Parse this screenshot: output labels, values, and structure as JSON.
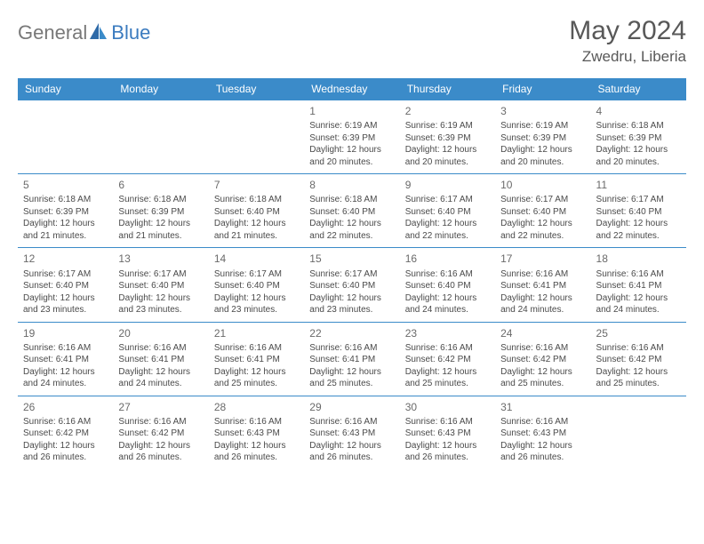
{
  "brand": {
    "part1": "General",
    "part2": "Blue"
  },
  "title": "May 2024",
  "location": "Zwedru, Liberia",
  "weekdays": [
    "Sunday",
    "Monday",
    "Tuesday",
    "Wednesday",
    "Thursday",
    "Friday",
    "Saturday"
  ],
  "colors": {
    "header_bg": "#3b8bc9",
    "header_fg": "#ffffff",
    "border": "#3b8bc9",
    "text": "#4a4a4a",
    "title_text": "#585858",
    "brand_gray": "#787878",
    "brand_blue": "#3b7bbf",
    "background": "#ffffff"
  },
  "weeks": [
    [
      null,
      null,
      null,
      {
        "n": "1",
        "sr": "6:19 AM",
        "ss": "6:39 PM",
        "dl": "12 hours and 20 minutes."
      },
      {
        "n": "2",
        "sr": "6:19 AM",
        "ss": "6:39 PM",
        "dl": "12 hours and 20 minutes."
      },
      {
        "n": "3",
        "sr": "6:19 AM",
        "ss": "6:39 PM",
        "dl": "12 hours and 20 minutes."
      },
      {
        "n": "4",
        "sr": "6:18 AM",
        "ss": "6:39 PM",
        "dl": "12 hours and 20 minutes."
      }
    ],
    [
      {
        "n": "5",
        "sr": "6:18 AM",
        "ss": "6:39 PM",
        "dl": "12 hours and 21 minutes."
      },
      {
        "n": "6",
        "sr": "6:18 AM",
        "ss": "6:39 PM",
        "dl": "12 hours and 21 minutes."
      },
      {
        "n": "7",
        "sr": "6:18 AM",
        "ss": "6:40 PM",
        "dl": "12 hours and 21 minutes."
      },
      {
        "n": "8",
        "sr": "6:18 AM",
        "ss": "6:40 PM",
        "dl": "12 hours and 22 minutes."
      },
      {
        "n": "9",
        "sr": "6:17 AM",
        "ss": "6:40 PM",
        "dl": "12 hours and 22 minutes."
      },
      {
        "n": "10",
        "sr": "6:17 AM",
        "ss": "6:40 PM",
        "dl": "12 hours and 22 minutes."
      },
      {
        "n": "11",
        "sr": "6:17 AM",
        "ss": "6:40 PM",
        "dl": "12 hours and 22 minutes."
      }
    ],
    [
      {
        "n": "12",
        "sr": "6:17 AM",
        "ss": "6:40 PM",
        "dl": "12 hours and 23 minutes."
      },
      {
        "n": "13",
        "sr": "6:17 AM",
        "ss": "6:40 PM",
        "dl": "12 hours and 23 minutes."
      },
      {
        "n": "14",
        "sr": "6:17 AM",
        "ss": "6:40 PM",
        "dl": "12 hours and 23 minutes."
      },
      {
        "n": "15",
        "sr": "6:17 AM",
        "ss": "6:40 PM",
        "dl": "12 hours and 23 minutes."
      },
      {
        "n": "16",
        "sr": "6:16 AM",
        "ss": "6:40 PM",
        "dl": "12 hours and 24 minutes."
      },
      {
        "n": "17",
        "sr": "6:16 AM",
        "ss": "6:41 PM",
        "dl": "12 hours and 24 minutes."
      },
      {
        "n": "18",
        "sr": "6:16 AM",
        "ss": "6:41 PM",
        "dl": "12 hours and 24 minutes."
      }
    ],
    [
      {
        "n": "19",
        "sr": "6:16 AM",
        "ss": "6:41 PM",
        "dl": "12 hours and 24 minutes."
      },
      {
        "n": "20",
        "sr": "6:16 AM",
        "ss": "6:41 PM",
        "dl": "12 hours and 24 minutes."
      },
      {
        "n": "21",
        "sr": "6:16 AM",
        "ss": "6:41 PM",
        "dl": "12 hours and 25 minutes."
      },
      {
        "n": "22",
        "sr": "6:16 AM",
        "ss": "6:41 PM",
        "dl": "12 hours and 25 minutes."
      },
      {
        "n": "23",
        "sr": "6:16 AM",
        "ss": "6:42 PM",
        "dl": "12 hours and 25 minutes."
      },
      {
        "n": "24",
        "sr": "6:16 AM",
        "ss": "6:42 PM",
        "dl": "12 hours and 25 minutes."
      },
      {
        "n": "25",
        "sr": "6:16 AM",
        "ss": "6:42 PM",
        "dl": "12 hours and 25 minutes."
      }
    ],
    [
      {
        "n": "26",
        "sr": "6:16 AM",
        "ss": "6:42 PM",
        "dl": "12 hours and 26 minutes."
      },
      {
        "n": "27",
        "sr": "6:16 AM",
        "ss": "6:42 PM",
        "dl": "12 hours and 26 minutes."
      },
      {
        "n": "28",
        "sr": "6:16 AM",
        "ss": "6:43 PM",
        "dl": "12 hours and 26 minutes."
      },
      {
        "n": "29",
        "sr": "6:16 AM",
        "ss": "6:43 PM",
        "dl": "12 hours and 26 minutes."
      },
      {
        "n": "30",
        "sr": "6:16 AM",
        "ss": "6:43 PM",
        "dl": "12 hours and 26 minutes."
      },
      {
        "n": "31",
        "sr": "6:16 AM",
        "ss": "6:43 PM",
        "dl": "12 hours and 26 minutes."
      },
      null
    ]
  ],
  "labels": {
    "sunrise": "Sunrise: ",
    "sunset": "Sunset: ",
    "daylight": "Daylight: "
  }
}
